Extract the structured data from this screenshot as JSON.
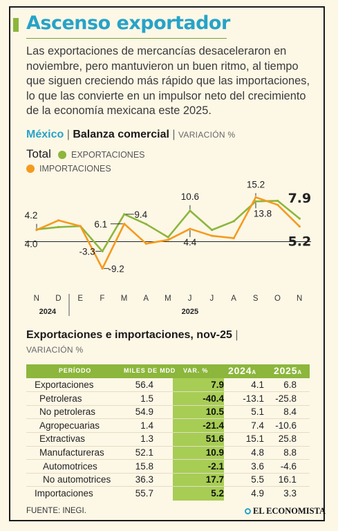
{
  "title": "Ascenso exportador",
  "intro": "Las exportaciones de mercancías desaceleraron en noviembre, pero mantuvieron un buen ritmo, al tiempo que siguen creciendo más rápido que las importaciones, lo que las convierte en un impulsor neto del crecimiento de la economía mexicana este 2025.",
  "section1": {
    "country": "México",
    "sep": "|",
    "name": "Balanza comercial",
    "unit": "VARIACIÓN %"
  },
  "legend": {
    "total": "Total",
    "exports": "EXPORTACIONES",
    "imports": "IMPORTACIONES"
  },
  "colors": {
    "exports": "#8cb63c",
    "imports": "#f59a1e",
    "accent_blue": "#27a3c8"
  },
  "chart_data": {
    "type": "line",
    "categories": [
      "N",
      "D",
      "E",
      "F",
      "M",
      "A",
      "M",
      "J",
      "J",
      "A",
      "S",
      "O",
      "N"
    ],
    "year_labels": [
      {
        "label": "2024",
        "index": 0.5
      },
      {
        "label": "2025",
        "index": 7
      }
    ],
    "series": [
      {
        "name": "EXPORTACIONES",
        "color": "#8cb63c",
        "values": [
          4.2,
          5.0,
          5.3,
          -3.3,
          9.4,
          6.0,
          1.5,
          10.6,
          4.0,
          7.0,
          13.8,
          14.0,
          7.9
        ]
      },
      {
        "name": "IMPORTACIONES",
        "color": "#f59a1e",
        "values": [
          4.0,
          7.3,
          5.3,
          -9.2,
          6.1,
          -0.7,
          0.6,
          4.4,
          2.0,
          1.2,
          15.2,
          12.6,
          5.2
        ]
      }
    ],
    "annotations": [
      {
        "text": "4.2",
        "index": 0,
        "value": 4.2
      },
      {
        "text": "4.0",
        "index": 0,
        "value": 4.0
      },
      {
        "text": "-3.3",
        "index": 3,
        "value": -3.3
      },
      {
        "text": "-9.2",
        "index": 3,
        "value": -9.2
      },
      {
        "text": "6.1",
        "index": 4,
        "value": 6.1
      },
      {
        "text": "9.4",
        "index": 4,
        "value": 9.4
      },
      {
        "text": "10.6",
        "index": 7,
        "value": 10.6
      },
      {
        "text": "4.4",
        "index": 7,
        "value": 4.4
      },
      {
        "text": "15.2",
        "index": 10,
        "value": 15.2
      },
      {
        "text": "13.8",
        "index": 10,
        "value": 13.8
      },
      {
        "text": "7.9",
        "index": 12,
        "value": 7.9
      },
      {
        "text": "5.2",
        "index": 12,
        "value": 5.2
      }
    ],
    "ylim": [
      -10,
      17
    ],
    "baseline": 0,
    "grid": false
  },
  "section2": {
    "title": "Exportaciones e importaciones, nov-25",
    "sep": "|",
    "unit": "VARIACIÓN %"
  },
  "table": {
    "headers": {
      "period": "PERÍODO",
      "mdd": "MILES DE MDD",
      "var": "VAR. %",
      "y2024": "2024",
      "y2024_suffix": "A",
      "y2025": "2025",
      "y2025_suffix": "A"
    },
    "rows": [
      {
        "label": "Exportaciones",
        "indent": 0,
        "mdd": "56.4",
        "var": "7.9",
        "y2024": "4.1",
        "y2025": "6.8"
      },
      {
        "label": "Petroleras",
        "indent": 1,
        "mdd": "1.5",
        "var": "-40.4",
        "y2024": "-13.1",
        "y2025": "-25.8"
      },
      {
        "label": "No petroleras",
        "indent": 1,
        "mdd": "54.9",
        "var": "10.5",
        "y2024": "5.1",
        "y2025": "8.4"
      },
      {
        "label": "Agropecuarias",
        "indent": 1,
        "mdd": "1.4",
        "var": "-21.4",
        "y2024": "7.4",
        "y2025": "-10.6"
      },
      {
        "label": "Extractivas",
        "indent": 1,
        "mdd": "1.3",
        "var": "51.6",
        "y2024": "15.1",
        "y2025": "25.8"
      },
      {
        "label": "Manufactureras",
        "indent": 1,
        "mdd": "52.1",
        "var": "10.9",
        "y2024": "4.8",
        "y2025": "8.8"
      },
      {
        "label": "Automotrices",
        "indent": 2,
        "mdd": "15.8",
        "var": "-2.1",
        "y2024": "3.6",
        "y2025": "-4.6"
      },
      {
        "label": "No automotrices",
        "indent": 2,
        "mdd": "36.3",
        "var": "17.7",
        "y2024": "5.5",
        "y2025": "16.1"
      },
      {
        "label": "Importaciones",
        "indent": 0,
        "mdd": "55.7",
        "var": "5.2",
        "y2024": "4.9",
        "y2025": "3.3"
      }
    ]
  },
  "footer": {
    "source": "FUENTE: INEGI.",
    "brand": "EL ECONOMISTA",
    "brand_icon": "el-economista-logo-icon"
  }
}
